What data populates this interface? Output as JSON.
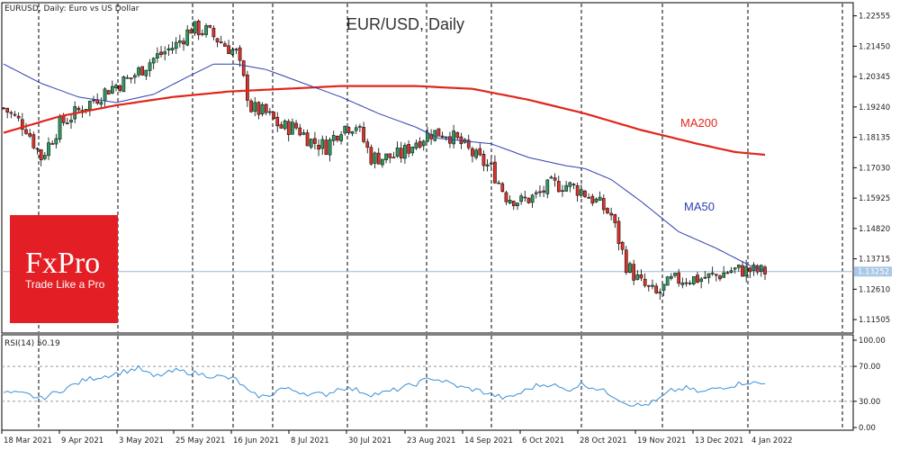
{
  "header": {
    "symbol_info": "EURUSD, Daily:  Euro vs US Dollar",
    "chart_title": "EUR/USD, Daily"
  },
  "logo": {
    "brand": "FxPro",
    "tagline": "Trade Like a Pro",
    "color": "#e31e24"
  },
  "colors": {
    "candle_up": "#2e9a60",
    "candle_down": "#d9342b",
    "ma200": "#e0261b",
    "ma50": "#2f3fb0",
    "rsi": "#3a8fd6",
    "price_line": "#9db8d8",
    "price_tag": "#a9c7e6"
  },
  "chart_data": [
    {
      "type": "candlestick",
      "title": "EUR/USD, Daily",
      "y_ticks": [
        "1.22555",
        "1.21450",
        "1.20345",
        "1.19240",
        "1.18135",
        "1.17030",
        "1.15925",
        "1.14820",
        "1.13715",
        "1.12610",
        "1.11505"
      ],
      "ylim": [
        1.1105,
        1.23
      ],
      "current_price": "1.13252",
      "x_labels": [
        "18 Mar 2021",
        "9 Apr 2021",
        "3 May 2021",
        "25 May 2021",
        "16 Jun 2021",
        "8 Jul 2021",
        "30 Jul 2021",
        "23 Aug 2021",
        "14 Sep 2021",
        "6 Oct 2021",
        "28 Oct 2021",
        "19 Nov 2021",
        "13 Dec 2021",
        "4 Jan 2022"
      ],
      "series_labels": {
        "ma200": "MA200",
        "ma50": "MA50"
      },
      "close_anchors": [
        [
          0,
          1.192
        ],
        [
          6,
          1.185
        ],
        [
          10,
          1.174
        ],
        [
          15,
          1.186
        ],
        [
          22,
          1.193
        ],
        [
          28,
          1.199
        ],
        [
          34,
          1.203
        ],
        [
          40,
          1.21
        ],
        [
          46,
          1.215
        ],
        [
          50,
          1.221
        ],
        [
          54,
          1.22
        ],
        [
          58,
          1.216
        ],
        [
          62,
          1.212
        ],
        [
          66,
          1.192
        ],
        [
          70,
          1.19
        ],
        [
          74,
          1.185
        ],
        [
          78,
          1.185
        ],
        [
          82,
          1.18
        ],
        [
          86,
          1.178
        ],
        [
          90,
          1.185
        ],
        [
          94,
          1.186
        ],
        [
          98,
          1.174
        ],
        [
          102,
          1.174
        ],
        [
          106,
          1.175
        ],
        [
          110,
          1.18
        ],
        [
          114,
          1.183
        ],
        [
          118,
          1.183
        ],
        [
          122,
          1.179
        ],
        [
          126,
          1.174
        ],
        [
          130,
          1.17
        ],
        [
          134,
          1.16
        ],
        [
          138,
          1.158
        ],
        [
          142,
          1.16
        ],
        [
          146,
          1.164
        ],
        [
          150,
          1.164
        ],
        [
          154,
          1.162
        ],
        [
          158,
          1.158
        ],
        [
          162,
          1.153
        ],
        [
          166,
          1.135
        ],
        [
          170,
          1.128
        ],
        [
          174,
          1.124
        ],
        [
          178,
          1.129
        ],
        [
          182,
          1.13
        ],
        [
          186,
          1.13
        ],
        [
          190,
          1.131
        ],
        [
          194,
          1.133
        ],
        [
          198,
          1.133
        ],
        [
          202,
          1.1325
        ]
      ],
      "ma50_anchors": [
        [
          0,
          1.208
        ],
        [
          10,
          1.201
        ],
        [
          20,
          1.196
        ],
        [
          30,
          1.194
        ],
        [
          40,
          1.197
        ],
        [
          50,
          1.204
        ],
        [
          56,
          1.208
        ],
        [
          62,
          1.208
        ],
        [
          70,
          1.206
        ],
        [
          80,
          1.201
        ],
        [
          90,
          1.196
        ],
        [
          100,
          1.19
        ],
        [
          110,
          1.185
        ],
        [
          116,
          1.181
        ],
        [
          130,
          1.179
        ],
        [
          140,
          1.174
        ],
        [
          150,
          1.171
        ],
        [
          155,
          1.17
        ],
        [
          162,
          1.166
        ],
        [
          170,
          1.158
        ],
        [
          180,
          1.147
        ],
        [
          190,
          1.141
        ],
        [
          200,
          1.134
        ],
        [
          203,
          1.133
        ]
      ],
      "ma200_anchors": [
        [
          0,
          1.183
        ],
        [
          15,
          1.189
        ],
        [
          30,
          1.193
        ],
        [
          45,
          1.196
        ],
        [
          60,
          1.198
        ],
        [
          75,
          1.199
        ],
        [
          90,
          1.2
        ],
        [
          110,
          1.2
        ],
        [
          125,
          1.199
        ],
        [
          140,
          1.195
        ],
        [
          155,
          1.19
        ],
        [
          170,
          1.184
        ],
        [
          185,
          1.179
        ],
        [
          195,
          1.176
        ],
        [
          203,
          1.175
        ]
      ]
    },
    {
      "type": "line",
      "label": "RSI(14) 50.19",
      "y_ticks": [
        "100.00",
        "70.00",
        "30.00",
        "0.00"
      ],
      "ylim": [
        0,
        100
      ],
      "levels": [
        70,
        30
      ],
      "rsi_anchors": [
        [
          0,
          40
        ],
        [
          6,
          38
        ],
        [
          10,
          33
        ],
        [
          15,
          42
        ],
        [
          22,
          55
        ],
        [
          28,
          60
        ],
        [
          33,
          65
        ],
        [
          36,
          68
        ],
        [
          40,
          58
        ],
        [
          46,
          65
        ],
        [
          50,
          63
        ],
        [
          54,
          60
        ],
        [
          58,
          58
        ],
        [
          62,
          55
        ],
        [
          66,
          38
        ],
        [
          70,
          35
        ],
        [
          74,
          45
        ],
        [
          78,
          42
        ],
        [
          82,
          38
        ],
        [
          86,
          38
        ],
        [
          90,
          46
        ],
        [
          94,
          43
        ],
        [
          98,
          38
        ],
        [
          102,
          40
        ],
        [
          106,
          45
        ],
        [
          110,
          50
        ],
        [
          114,
          57
        ],
        [
          118,
          52
        ],
        [
          122,
          46
        ],
        [
          126,
          43
        ],
        [
          130,
          38
        ],
        [
          134,
          33
        ],
        [
          138,
          40
        ],
        [
          142,
          48
        ],
        [
          146,
          50
        ],
        [
          150,
          42
        ],
        [
          154,
          50
        ],
        [
          158,
          45
        ],
        [
          162,
          38
        ],
        [
          166,
          28
        ],
        [
          170,
          25
        ],
        [
          174,
          30
        ],
        [
          178,
          42
        ],
        [
          182,
          45
        ],
        [
          186,
          40
        ],
        [
          190,
          45
        ],
        [
          194,
          48
        ],
        [
          198,
          52
        ],
        [
          202,
          50
        ]
      ]
    }
  ]
}
